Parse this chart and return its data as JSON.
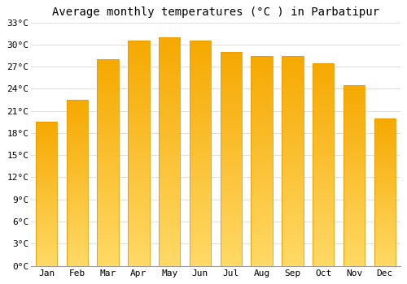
{
  "title": "Average monthly temperatures (°C ) in Parbatipur",
  "months": [
    "Jan",
    "Feb",
    "Mar",
    "Apr",
    "May",
    "Jun",
    "Jul",
    "Aug",
    "Sep",
    "Oct",
    "Nov",
    "Dec"
  ],
  "values": [
    19.5,
    22.5,
    28.0,
    30.5,
    31.0,
    30.5,
    29.0,
    28.5,
    28.5,
    27.5,
    24.5,
    20.0
  ],
  "bar_color_bottom": "#FFD966",
  "bar_color_top": "#F5A800",
  "bar_edge_color": "#E89A00",
  "ylim": [
    0,
    33
  ],
  "yticks": [
    0,
    3,
    6,
    9,
    12,
    15,
    18,
    21,
    24,
    27,
    30,
    33
  ],
  "background_color": "#FFFFFF",
  "grid_color": "#DDDDDD",
  "title_fontsize": 10,
  "tick_fontsize": 8,
  "font_family": "monospace",
  "bar_width": 0.7
}
